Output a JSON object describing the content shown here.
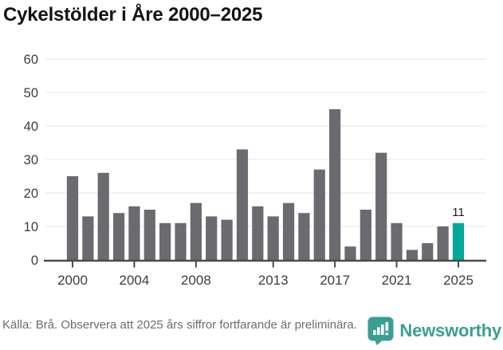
{
  "title": "Cykelstölder i Åre 2000–2025",
  "chart_data": {
    "type": "bar",
    "categories": [
      2000,
      2001,
      2002,
      2003,
      2004,
      2005,
      2006,
      2007,
      2008,
      2009,
      2010,
      2011,
      2012,
      2013,
      2014,
      2015,
      2016,
      2017,
      2018,
      2019,
      2020,
      2021,
      2022,
      2023,
      2024,
      2025
    ],
    "values": [
      25,
      13,
      26,
      14,
      16,
      15,
      11,
      11,
      17,
      13,
      12,
      33,
      16,
      13,
      17,
      14,
      27,
      45,
      4,
      15,
      32,
      11,
      3,
      5,
      10,
      11
    ],
    "title": "Cykelstölder i Åre 2000–2025",
    "xlabel": "",
    "ylabel": "",
    "ylim": [
      0,
      60
    ],
    "yticks": [
      0,
      10,
      20,
      30,
      40,
      50,
      60
    ],
    "xticks": [
      2000,
      2004,
      2008,
      2013,
      2017,
      2021,
      2025
    ],
    "grid": true,
    "legend_position": "none",
    "highlight_year": 2025,
    "annotation": {
      "year": 2025,
      "text": "11"
    },
    "colors": {
      "bar": "#6b6a70",
      "highlight": "#00a79b",
      "grid": "#e9e9e9",
      "axis": "#4b4b4b"
    }
  },
  "footer": {
    "source": "Källa: Brå. Observera att 2025 års siffror fortfarande är preliminära.",
    "brand": "Newsworthy",
    "brand_color": "#3a9e94"
  }
}
